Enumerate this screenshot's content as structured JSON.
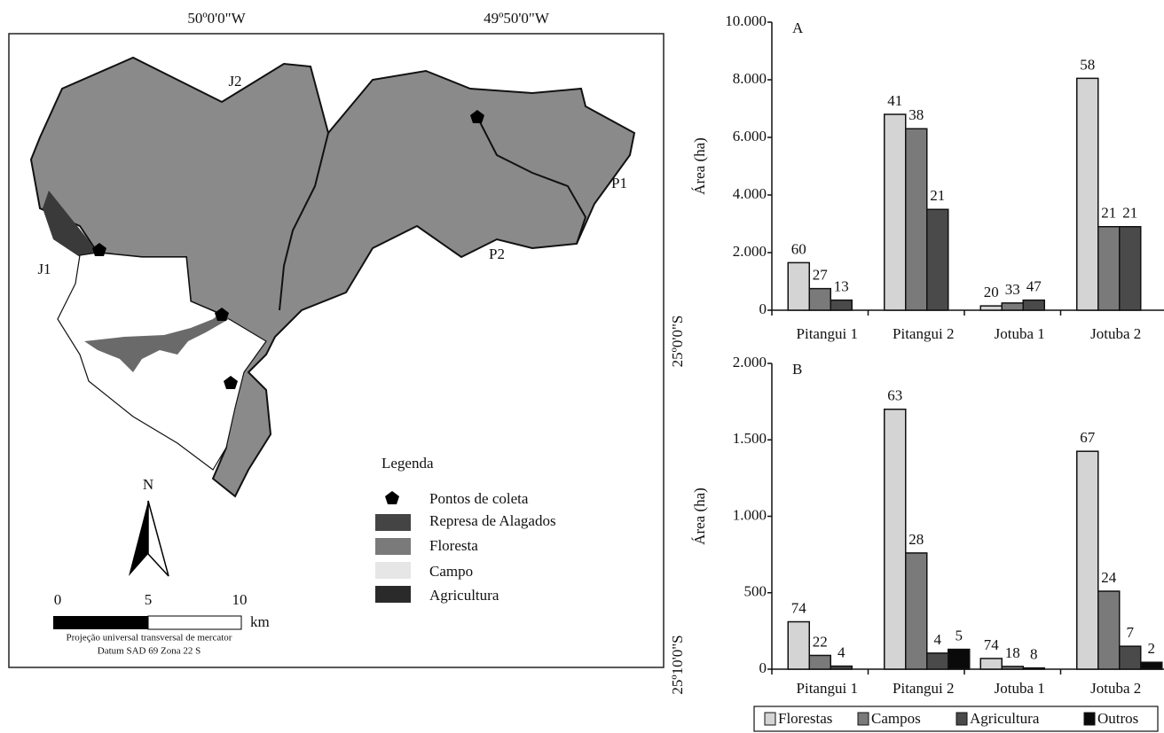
{
  "map": {
    "coords": {
      "lon1": "50º0'0\"W",
      "lon2": "49º50'0\"W",
      "lat1": "25º0'0\"S",
      "lat2": "25º10'0\"S"
    },
    "regions": {
      "j1": "J1",
      "j2": "J2",
      "p1": "P1",
      "p2": "P2"
    },
    "north": "N",
    "legend": {
      "title": "Legenda",
      "items": [
        "Pontos de coleta",
        "Represa de Alagados",
        "Floresta",
        "Campo",
        "Agricultura"
      ]
    },
    "scale": {
      "ticks": [
        "0",
        "5",
        "10"
      ],
      "unit": "km"
    },
    "projection": [
      "Projeção universal transversal de mercator",
      "Datum SAD 69 Zona 22 S"
    ]
  },
  "chart_data": [
    {
      "type": "bar",
      "panel": "A",
      "y_label": "Área (ha)",
      "categories": [
        "Pitangui 1",
        "Pitangui 2",
        "Jotuba 1",
        "Jotuba 2"
      ],
      "series": [
        {
          "color": "#d4d4d4",
          "values": [
            1650,
            6800,
            150,
            8050
          ],
          "percentages": [
            60,
            41,
            20,
            58
          ]
        },
        {
          "color": "#7a7a7a",
          "values": [
            750,
            6300,
            250,
            2900
          ],
          "percentages": [
            27,
            38,
            33,
            21
          ]
        },
        {
          "color": "#4a4a4a",
          "values": [
            350,
            3500,
            350,
            2900
          ],
          "percentages": [
            13,
            21,
            47,
            21
          ]
        }
      ],
      "ylim": [
        0,
        10000
      ],
      "yticks": [
        0,
        {
          "value": 2000,
          "label": "2.000"
        },
        {
          "value": 4000,
          "label": "4.000"
        },
        {
          "value": 6000,
          "label": "6.000"
        },
        {
          "value": 8000,
          "label": "8.000"
        },
        {
          "value": 10000,
          "label": "10.000"
        }
      ]
    },
    {
      "type": "bar",
      "panel": "B",
      "y_label": "Área (ha)",
      "categories": [
        "Pitangui 1",
        "Pitangui 2",
        "Jotuba 1",
        "Jotuba 2"
      ],
      "series": [
        {
          "name": "Florestas",
          "color": "#d4d4d4",
          "values": [
            310,
            1700,
            70,
            1425
          ],
          "percentages": [
            74,
            63,
            74,
            67
          ]
        },
        {
          "name": "Campos",
          "color": "#7a7a7a",
          "values": [
            90,
            760,
            18,
            510
          ],
          "percentages": [
            22,
            28,
            18,
            24
          ]
        },
        {
          "name": "Agricultura",
          "color": "#4a4a4a",
          "values": [
            20,
            105,
            8,
            150
          ],
          "percentages": [
            4,
            4,
            8,
            7
          ]
        },
        {
          "name": "Outros",
          "color": "#0a0a0a",
          "values": [
            null,
            130,
            null,
            45
          ],
          "percentages": [
            null,
            5,
            null,
            2
          ]
        }
      ],
      "ylim": [
        0,
        2000
      ],
      "yticks": [
        0,
        500,
        {
          "value": 1000,
          "label": "1.000"
        },
        {
          "value": 1500,
          "label": "1.500"
        },
        {
          "value": 2000,
          "label": "2.000"
        }
      ],
      "legend": "bottom"
    }
  ]
}
